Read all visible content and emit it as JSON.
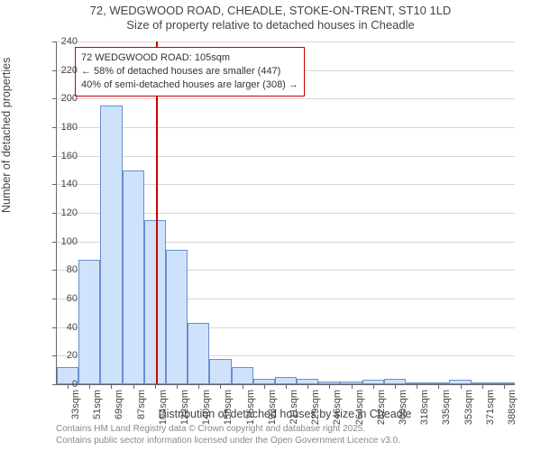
{
  "title": {
    "line1": "72, WEDGWOOD ROAD, CHEADLE, STOKE-ON-TRENT, ST10 1LD",
    "line2": "Size of property relative to detached houses in Cheadle"
  },
  "chart": {
    "type": "histogram",
    "background_color": "#ffffff",
    "grid_color": "#d8d8d8",
    "axis_color": "#666666",
    "tick_font_size": 11,
    "label_font_size": 12.5,
    "title_font_size": 13,
    "y": {
      "label": "Number of detached properties",
      "min": 0,
      "max": 240,
      "tick_step": 20,
      "ticks": [
        0,
        20,
        40,
        60,
        80,
        100,
        120,
        140,
        160,
        180,
        200,
        220,
        240
      ]
    },
    "x": {
      "label": "Distribution of detached houses by size in Cheadle",
      "bin_start": 24,
      "bin_width": 17.76,
      "tick_labels": [
        "33sqm",
        "51sqm",
        "69sqm",
        "87sqm",
        "104sqm",
        "122sqm",
        "140sqm",
        "158sqm",
        "175sqm",
        "193sqm",
        "211sqm",
        "229sqm",
        "246sqm",
        "264sqm",
        "282sqm",
        "300sqm",
        "318sqm",
        "335sqm",
        "353sqm",
        "371sqm",
        "388sqm"
      ]
    },
    "bars": {
      "fill": "#cfe2fb",
      "border": "#6a8fca",
      "border_width": 1,
      "values": [
        12,
        87,
        195,
        150,
        115,
        94,
        43,
        18,
        12,
        4,
        5,
        4,
        2,
        2,
        3,
        4,
        1,
        0,
        3,
        1,
        0
      ]
    },
    "highlight_line": {
      "value_sqm": 105,
      "color": "#cc0000",
      "width": 2
    },
    "callout": {
      "border_color": "#cc0000",
      "background": "#ffffff",
      "lines": [
        "72 WEDGWOOD ROAD: 105sqm",
        "← 58% of detached houses are smaller (447)",
        "40% of semi-detached houses are larger (308) →"
      ]
    }
  },
  "attribution": {
    "line1": "Contains HM Land Registry data © Crown copyright and database right 2025.",
    "line2": "Contains public sector information licensed under the Open Government Licence v3.0."
  }
}
